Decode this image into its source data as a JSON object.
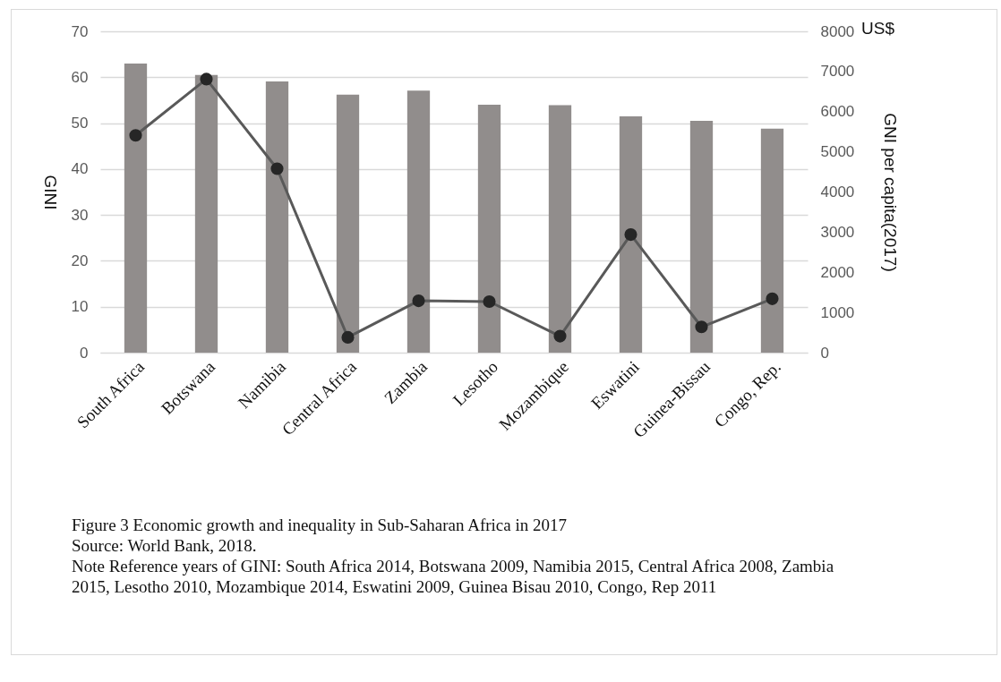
{
  "chart_data": {
    "type": "bar",
    "categories": [
      "South Africa",
      "Botswana",
      "Namibia",
      "Central Africa",
      "Zambia",
      "Lesotho",
      "Mozambique",
      "Eswatini",
      "Guinea-Bissau",
      "Congo, Rep."
    ],
    "series": [
      {
        "color": "#8f8b8a",
        "values": [
          63.0,
          60.5,
          59.1,
          56.2,
          57.1,
          54.0,
          53.9,
          51.5,
          50.5,
          48.8
        ]
      },
      {
        "type": "line",
        "axis": "y2",
        "color": "#595959",
        "marker": "circle",
        "values": [
          5410,
          6810,
          4580,
          380,
          1290,
          1270,
          410,
          2940,
          640,
          1340
        ]
      }
    ],
    "ylabel": "GINI",
    "y2label": "GNI per capita(2017)",
    "ylim": [
      0,
      70
    ],
    "yticks": [
      0,
      10,
      20,
      30,
      40,
      50,
      60,
      70
    ],
    "y2lim": [
      0,
      8000
    ],
    "y2ticks": [
      0,
      1000,
      2000,
      3000,
      4000,
      5000,
      6000,
      7000,
      8000
    ],
    "grid": "y",
    "annotations": [
      "US$",
      "Figure 3 Economic growth and inequality in Sub-Saharan Africa  in 2017",
      "Source: World Bank, 2018.",
      "Note Reference years of GINI: South Africa 2014, Botswana 2009, Namibia 2015, Central Africa 2008, Zambia 2015, Lesotho 2010, Mozambique 2014, Eswatini 2009, Guinea Bisau 2010, Congo, Rep 2011"
    ]
  }
}
